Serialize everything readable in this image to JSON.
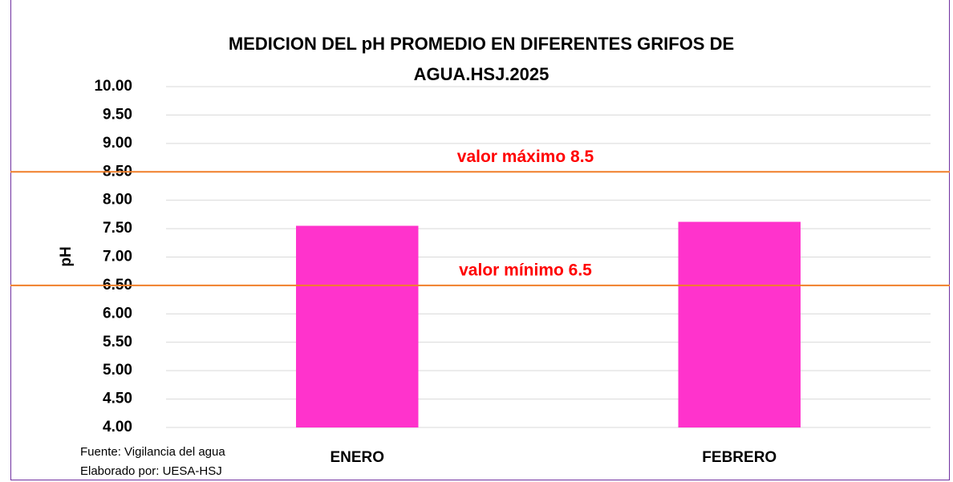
{
  "chart_data": {
    "type": "bar",
    "title": "MEDICION DEL pH PROMEDIO EN DIFERENTES GRIFOS DE AGUA.HSJ.2025",
    "y_label": "pH",
    "categories": [
      "ENERO",
      "FEBRERO"
    ],
    "values": [
      7.55,
      7.62
    ],
    "color": "#ff33cc",
    "ylim": [
      4,
      10
    ],
    "yticks": [
      {
        "value": 4,
        "label": "4.00"
      },
      {
        "value": 4.5,
        "label": "4.50"
      },
      {
        "value": 5,
        "label": "5.00"
      },
      {
        "value": 5.5,
        "label": "5.50"
      },
      {
        "value": 6,
        "label": "6.00"
      },
      {
        "value": 6.5,
        "label": "6.50"
      },
      {
        "value": 7,
        "label": "7.00"
      },
      {
        "value": 7.5,
        "label": "7.50"
      },
      {
        "value": 8,
        "label": "8.00"
      },
      {
        "value": 8.5,
        "label": "8.50"
      },
      {
        "value": 9,
        "label": "9.00"
      },
      {
        "value": 9.5,
        "label": "9.50"
      },
      {
        "value": 10,
        "label": "10.00"
      }
    ],
    "grid": true,
    "reference_lines": [
      {
        "value": 8.5,
        "label": "valor máximo 8.5",
        "color": "#f07f2a"
      },
      {
        "value": 6.5,
        "label": "valor mínimo 6.5",
        "color": "#f07f2a"
      }
    ],
    "annotation_color": "#ff0000",
    "footnotes": [
      "Fuente: Vigilancia del agua",
      "Elaborado por: UESA-HSJ"
    ]
  }
}
